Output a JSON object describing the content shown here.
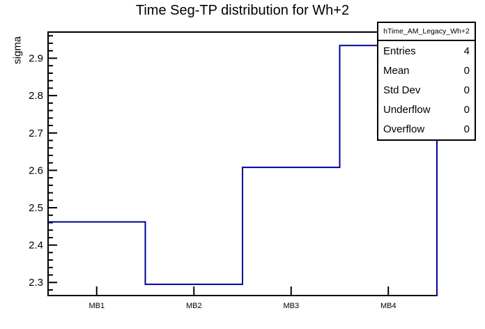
{
  "title": "Time Seg-TP distribution for Wh+2",
  "colors": {
    "line": "#000099",
    "frame": "#000000",
    "background": "#ffffff",
    "text": "#000000"
  },
  "chart_data": {
    "type": "step-histogram",
    "categories": [
      "MB1",
      "MB2",
      "MB3",
      "MB4"
    ],
    "values": [
      2.462,
      2.295,
      2.608,
      2.934
    ],
    "title": "Time Seg-TP distribution for Wh+2",
    "xlabel": "",
    "ylabel": "sigma",
    "ylim": [
      2.265,
      2.97
    ],
    "yticks": [
      2.3,
      2.4,
      2.5,
      2.6,
      2.7,
      2.8,
      2.9
    ],
    "y_minor_step": 0.02,
    "grid": false,
    "legend_position": "none"
  },
  "stats_box": {
    "header": "hTime_AM_Legacy_Wh+2",
    "rows": [
      {
        "label": "Entries",
        "value": "4"
      },
      {
        "label": "Mean",
        "value": "0"
      },
      {
        "label": "Std Dev",
        "value": "0"
      },
      {
        "label": "Underflow",
        "value": "0"
      },
      {
        "label": "Overflow",
        "value": "0"
      }
    ]
  }
}
